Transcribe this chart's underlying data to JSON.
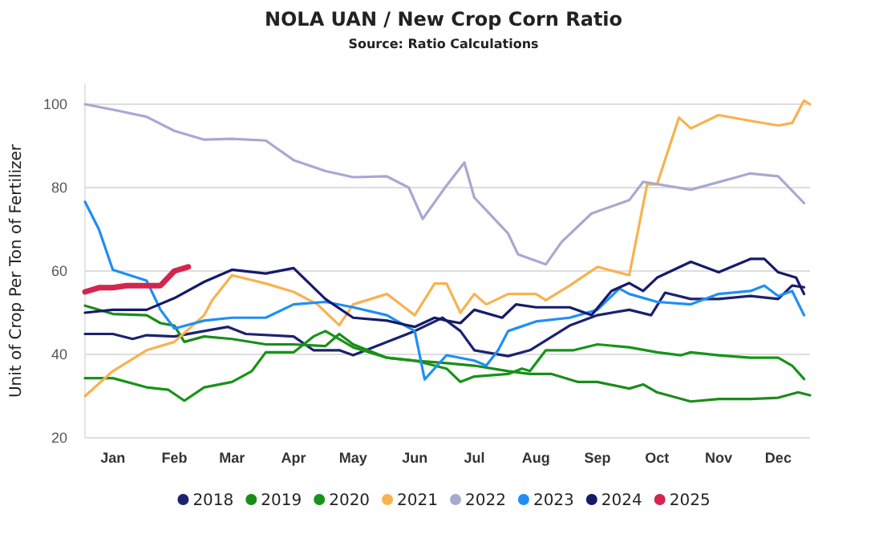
{
  "chart_data": {
    "type": "line",
    "title": "NOLA UAN / New Crop Corn Ratio",
    "subtitle": "Source: Ratio Calculations",
    "ylabel": "Unit of Crop Per Ton of Fertilizer",
    "xlim": [
      "--01-01",
      "--12-31"
    ],
    "xticks": [
      {
        "value": "--01-15",
        "label": "Jan"
      },
      {
        "value": "--02-15",
        "label": "Feb"
      },
      {
        "value": "--03-15",
        "label": "Mar"
      },
      {
        "value": "--04-15",
        "label": "Apr"
      },
      {
        "value": "--05-15",
        "label": "May"
      },
      {
        "value": "--06-15",
        "label": "Jun"
      },
      {
        "value": "--07-15",
        "label": "Jul"
      },
      {
        "value": "--08-15",
        "label": "Aug"
      },
      {
        "value": "--09-15",
        "label": "Sep"
      },
      {
        "value": "--10-15",
        "label": "Oct"
      },
      {
        "value": "--11-15",
        "label": "Nov"
      },
      {
        "value": "--12-15",
        "label": "Dec"
      }
    ],
    "ylim": [
      20,
      105
    ],
    "yticks": [
      20,
      40,
      60,
      80,
      100
    ],
    "grid": "y",
    "legend": "bottom",
    "series": [
      {
        "name": "2018",
        "color": "#1c2270",
        "x": [
          "--01-01",
          "--01-15",
          "--01-25",
          "--02-01",
          "--02-15",
          "--03-01",
          "--03-13",
          "--03-22",
          "--04-15",
          "--04-25",
          "--05-08",
          "--05-15",
          "--06-01",
          "--06-15",
          "--06-29",
          "--07-08",
          "--07-15",
          "--08-01",
          "--08-12",
          "--09-01",
          "--09-15",
          "--10-01",
          "--10-12",
          "--10-19",
          "--11-01",
          "--11-15",
          "--12-01",
          "--12-15",
          "--12-22",
          "--12-28"
        ],
        "values": [
          44.9,
          44.9,
          43.7,
          44.6,
          44.3,
          45.6,
          46.6,
          44.9,
          44.3,
          41,
          41,
          39.8,
          43,
          45.6,
          48.8,
          45.6,
          41,
          39.6,
          41,
          46.9,
          49.4,
          50.7,
          49.4,
          54.8,
          53.3,
          53.3,
          54,
          53.3,
          56.5,
          56.1
        ]
      },
      {
        "name": "2019",
        "color": "#1a8c1a",
        "x": [
          "--01-01",
          "--01-15",
          "--02-01",
          "--02-08",
          "--02-15",
          "--02-20",
          "--03-01",
          "--03-15",
          "--04-01",
          "--04-15",
          "--05-01",
          "--05-08",
          "--05-15",
          "--06-01",
          "--06-15",
          "--07-01",
          "--07-15",
          "--08-01",
          "--08-12",
          "--08-23",
          "--09-05",
          "--09-15",
          "--10-01",
          "--10-08",
          "--10-15",
          "--11-01",
          "--11-15",
          "--12-01",
          "--12-15",
          "--12-25",
          "--12-31"
        ],
        "values": [
          51.7,
          49.7,
          49.4,
          47.5,
          46.9,
          43,
          44.3,
          43.7,
          42.4,
          42.4,
          42,
          44.9,
          42.4,
          39.2,
          38.5,
          37.9,
          37.3,
          36,
          35.3,
          35.3,
          33.4,
          33.4,
          31.8,
          32.8,
          30.9,
          28.7,
          29.3,
          29.3,
          29.6,
          30.9,
          30.2
        ]
      },
      {
        "name": "2020",
        "color": "#179417",
        "x": [
          "--01-01",
          "--01-15",
          "--02-01",
          "--02-12",
          "--02-20",
          "--03-01",
          "--03-15",
          "--03-25",
          "--04-01",
          "--04-15",
          "--04-25",
          "--05-01",
          "--05-15",
          "--06-01",
          "--06-15",
          "--07-01",
          "--07-08",
          "--07-15",
          "--08-01",
          "--08-08",
          "--08-12",
          "--08-20",
          "--09-03",
          "--09-15",
          "--10-01",
          "--10-15",
          "--10-27",
          "--11-01",
          "--11-15",
          "--12-01",
          "--12-15",
          "--12-22",
          "--12-28"
        ],
        "values": [
          34.3,
          34.3,
          32.1,
          31.5,
          28.9,
          32.1,
          33.4,
          36,
          40.5,
          40.5,
          44.3,
          45.6,
          41.7,
          39.2,
          38.5,
          36.6,
          33.4,
          34.7,
          35.3,
          36.6,
          36,
          41,
          41,
          42.4,
          41.7,
          40.5,
          39.8,
          40.5,
          39.8,
          39.2,
          39.2,
          37.3,
          34.1
        ]
      },
      {
        "name": "2021",
        "color": "#f8b24f",
        "x": [
          "--01-01",
          "--01-15",
          "--02-01",
          "--02-15",
          "--03-01",
          "--03-05",
          "--03-15",
          "--04-01",
          "--04-15",
          "--04-27",
          "--05-08",
          "--05-15",
          "--06-01",
          "--06-15",
          "--06-25",
          "--07-01",
          "--07-08",
          "--07-15",
          "--07-21",
          "--08-01",
          "--08-15",
          "--08-20",
          "--09-01",
          "--09-15",
          "--10-01",
          "--10-10",
          "--10-15",
          "--10-26",
          "--11-01",
          "--11-15",
          "--12-01",
          "--12-15",
          "--12-22",
          "--12-28",
          "--12-31"
        ],
        "values": [
          30,
          36,
          41,
          43,
          49.4,
          53,
          59,
          57,
          55,
          52,
          47,
          52,
          54.5,
          49.4,
          57,
          57,
          50,
          54.5,
          52,
          54.5,
          54.5,
          53,
          56.5,
          61,
          59,
          80.8,
          80.8,
          96.8,
          94.2,
          97.4,
          96,
          94.9,
          95.5,
          100.9,
          100
        ]
      },
      {
        "name": "2022",
        "color": "#a8a9d1",
        "x": [
          "--01-01",
          "--01-15",
          "--02-01",
          "--02-15",
          "--03-01",
          "--03-15",
          "--04-01",
          "--04-15",
          "--05-01",
          "--05-15",
          "--06-01",
          "--06-12",
          "--06-19",
          "--07-01",
          "--07-10",
          "--07-15",
          "--08-01",
          "--08-06",
          "--08-20",
          "--08-28",
          "--09-12",
          "--10-01",
          "--10-08",
          "--11-01",
          "--12-01",
          "--12-15",
          "--12-28"
        ],
        "values": [
          100,
          98.7,
          97,
          93.6,
          91.5,
          91.7,
          91.3,
          86.6,
          84,
          82.5,
          82.7,
          80,
          72.5,
          80.5,
          86,
          77.6,
          69,
          64,
          61.6,
          67,
          73.8,
          77,
          81.4,
          79.5,
          83.4,
          82.7,
          76.3
        ]
      },
      {
        "name": "2023",
        "color": "#1e8ff5",
        "x": [
          "--01-01",
          "--01-08",
          "--01-15",
          "--02-01",
          "--02-08",
          "--02-15",
          "--03-01",
          "--03-15",
          "--04-01",
          "--04-15",
          "--05-01",
          "--05-15",
          "--06-01",
          "--06-15",
          "--06-20",
          "--07-01",
          "--07-15",
          "--07-21",
          "--07-27",
          "--08-01",
          "--08-15",
          "--09-01",
          "--09-15",
          "--09-26",
          "--10-01",
          "--10-15",
          "--11-01",
          "--11-15",
          "--12-01",
          "--12-08",
          "--12-15",
          "--12-22",
          "--12-28"
        ],
        "values": [
          76.6,
          70,
          60.3,
          57.7,
          50.7,
          46.2,
          48.1,
          48.8,
          48.8,
          52,
          52.6,
          51.3,
          49.4,
          45.6,
          34,
          39.8,
          38.5,
          37.3,
          41,
          45.6,
          47.9,
          48.8,
          50.7,
          55.8,
          54.5,
          52.6,
          52,
          54.5,
          55.2,
          56.5,
          54,
          55.2,
          49.4
        ]
      },
      {
        "name": "2024",
        "color": "#151a6a",
        "x": [
          "--01-01",
          "--01-15",
          "--02-01",
          "--02-15",
          "--03-01",
          "--03-15",
          "--04-01",
          "--04-15",
          "--05-01",
          "--05-15",
          "--06-01",
          "--06-15",
          "--06-25",
          "--07-01",
          "--07-08",
          "--07-15",
          "--07-29",
          "--08-05",
          "--08-15",
          "--09-01",
          "--09-12",
          "--09-22",
          "--10-01",
          "--10-08",
          "--10-15",
          "--11-01",
          "--11-15",
          "--12-01",
          "--12-08",
          "--12-15",
          "--12-24",
          "--12-28"
        ],
        "values": [
          50,
          50.7,
          50.7,
          53.5,
          57.4,
          60.3,
          59.4,
          60.7,
          53.3,
          48.8,
          48.1,
          46.6,
          48.8,
          48.1,
          47.5,
          50.7,
          48.8,
          52,
          51.3,
          51.3,
          49.4,
          55.2,
          57.1,
          55.2,
          58.4,
          62.2,
          59.7,
          62.9,
          62.9,
          59.7,
          58.4,
          54.5
        ]
      },
      {
        "name": "2025",
        "color": "#d3264f",
        "x": [
          "--01-01",
          "--01-08",
          "--01-15",
          "--01-22",
          "--02-01",
          "--02-08",
          "--02-15",
          "--02-22"
        ],
        "values": [
          55,
          56,
          56,
          56.5,
          56.5,
          56.5,
          60,
          61
        ]
      }
    ]
  }
}
